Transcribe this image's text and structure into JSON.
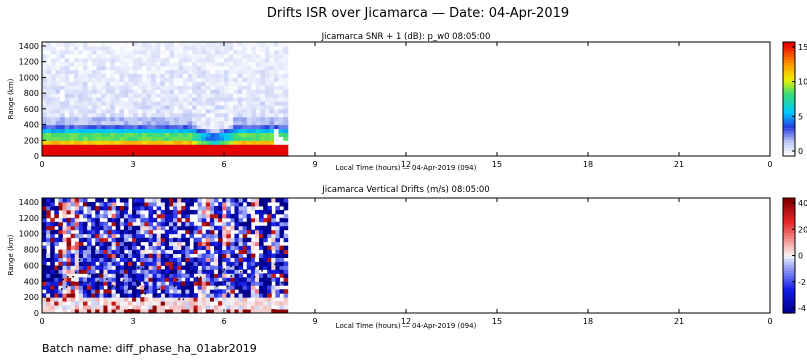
{
  "figure": {
    "title": "Drifts ISR over Jicamarca — Date: 04-Apr-2019",
    "batch": "Batch name: diff_phase_ha_01abr2019"
  },
  "chart_data": [
    {
      "type": "heatmap",
      "title": "Jicamarca SNR + 1 (dB): p_w0 08:05:00",
      "xlabel": "Local Time (hours) — 04-Apr-2019 (094)",
      "ylabel": "Range (km)",
      "x_ticks": [
        "0",
        "3",
        "6",
        "9",
        "12",
        "15",
        "18",
        "21",
        "0"
      ],
      "y_ticks": [
        "0",
        "200",
        "400",
        "600",
        "800",
        "1000",
        "1200",
        "1400"
      ],
      "xlim": [
        0,
        24
      ],
      "ylim": [
        0,
        1450
      ],
      "data_extent_hours": [
        0,
        8.1
      ],
      "colorbar": {
        "ticks": [
          "0",
          "5",
          "10",
          "15"
        ],
        "range": [
          0,
          16
        ],
        "colormap": "white-blue-cyan-green-yellow-red"
      },
      "layers_km": [
        {
          "from": 0,
          "to": 150,
          "level": 16
        },
        {
          "from": 150,
          "to": 200,
          "level": 12
        },
        {
          "from": 200,
          "to": 280,
          "level": 9
        },
        {
          "from": 280,
          "to": 340,
          "level": 6
        },
        {
          "from": 340,
          "to": 420,
          "level": 3.5
        },
        {
          "from": 420,
          "to": 480,
          "level": 2
        },
        {
          "from": 480,
          "to": 1450,
          "level": 0.4
        }
      ]
    },
    {
      "type": "heatmap",
      "title": "Jicamarca Vertical Drifts (m/s) 08:05:00",
      "xlabel": "Local Time (hours) — 04-Apr-2019 (094)",
      "ylabel": "Range (km)",
      "x_ticks": [
        "0",
        "3",
        "6",
        "9",
        "12",
        "15",
        "18",
        "21",
        "0"
      ],
      "y_ticks": [
        "0",
        "200",
        "400",
        "600",
        "800",
        "1000",
        "1200",
        "1400"
      ],
      "xlim": [
        0,
        24
      ],
      "ylim": [
        0,
        1450
      ],
      "data_extent_hours": [
        0,
        8.1
      ],
      "colorbar": {
        "ticks": [
          "-4",
          "-2",
          "0",
          "20",
          "40"
        ],
        "colormap": "blue-white-red"
      }
    }
  ]
}
